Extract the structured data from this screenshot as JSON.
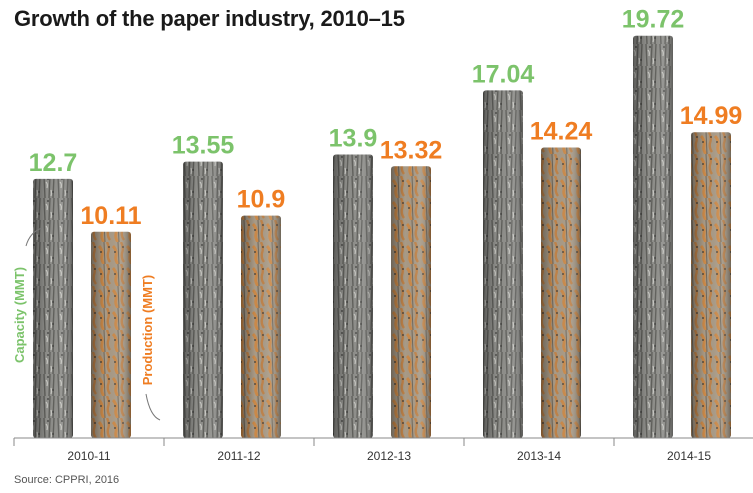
{
  "title": "Growth of the paper industry, 2010–15",
  "source": "Source: CPPRI, 2016",
  "colors": {
    "capacity": "#7cc36b",
    "production": "#ef7d22",
    "axis": "#888888"
  },
  "chart_data": {
    "type": "bar",
    "title": "Growth of the paper industry, 2010–15",
    "categories": [
      "2010-11",
      "2011-12",
      "2012-13",
      "2013-14",
      "2014-15"
    ],
    "series": [
      {
        "name": "Capacity (MMT)",
        "values": [
          12.7,
          13.55,
          13.9,
          17.04,
          19.72
        ]
      },
      {
        "name": "Production (MMT)",
        "values": [
          10.11,
          10.9,
          13.32,
          14.24,
          14.99
        ]
      }
    ],
    "value_labels": {
      "Capacity (MMT)": [
        "12.7",
        "13.55",
        "13.9",
        "17.04",
        "19.72"
      ],
      "Production (MMT)": [
        "10.11",
        "10.9",
        "13.32",
        "14.24",
        "14.99"
      ]
    },
    "ylim": [
      0,
      20
    ],
    "grid": false,
    "legend": "rotated labels inside first group"
  }
}
